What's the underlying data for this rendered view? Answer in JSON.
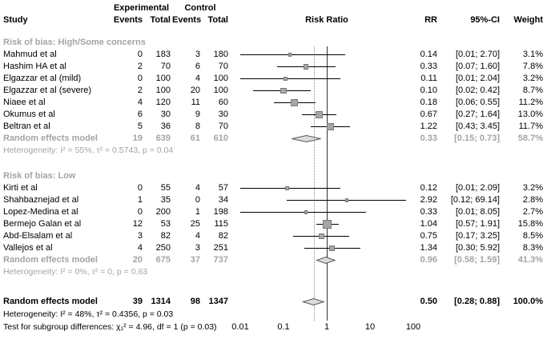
{
  "header": {
    "col_study": "Study",
    "group_experimental": "Experimental",
    "group_control": "Control",
    "col_events": "Events",
    "col_total": "Total",
    "col_risk_ratio": "Risk Ratio",
    "col_rr": "RR",
    "col_ci": "95%-CI",
    "col_weight": "Weight"
  },
  "footer": {
    "overall_heterogeneity": "Heterogeneity: I² = 48%, τ² = 0.4356, p = 0.03",
    "subgroup_test": "Test for subgroup differences: χ₁² = 4.96, df = 1 (p = 0.03)"
  },
  "chart_data": {
    "type": "forest",
    "effect_measure": "Risk Ratio",
    "x_scale": "log",
    "x_range": [
      0.01,
      100
    ],
    "x_ticks": [
      "0.01",
      "0.1",
      "1",
      "10",
      "100"
    ],
    "reference_line": 1.0,
    "overall_effect_line": 0.5,
    "groups": [
      {
        "label": "Risk of bias: High/Some concerns",
        "heterogeneity": "Heterogeneity: I² = 55%, τ² = 0.5743, p = 0.04",
        "studies": [
          {
            "study": "Mahmud et al",
            "exp_events": "0",
            "exp_total": "183",
            "ctrl_events": "3",
            "ctrl_total": "180",
            "rr": 0.14,
            "ci_low": 0.01,
            "ci_high": 2.7,
            "rr_text": "0.14",
            "ci_text": "[0.01; 2.70]",
            "weight": 3.1,
            "weight_text": "3.1%"
          },
          {
            "study": "Hashim HA et al",
            "exp_events": "2",
            "exp_total": "70",
            "ctrl_events": "6",
            "ctrl_total": "70",
            "rr": 0.33,
            "ci_low": 0.07,
            "ci_high": 1.6,
            "rr_text": "0.33",
            "ci_text": "[0.07; 1.60]",
            "weight": 7.8,
            "weight_text": "7.8%"
          },
          {
            "study": "Elgazzar et al (mild)",
            "exp_events": "0",
            "exp_total": "100",
            "ctrl_events": "4",
            "ctrl_total": "100",
            "rr": 0.11,
            "ci_low": 0.01,
            "ci_high": 2.04,
            "rr_text": "0.11",
            "ci_text": "[0.01; 2.04]",
            "weight": 3.2,
            "weight_text": "3.2%"
          },
          {
            "study": "Elgazzar et al (severe)",
            "exp_events": "2",
            "exp_total": "100",
            "ctrl_events": "20",
            "ctrl_total": "100",
            "rr": 0.1,
            "ci_low": 0.02,
            "ci_high": 0.42,
            "rr_text": "0.10",
            "ci_text": "[0.02; 0.42]",
            "weight": 8.7,
            "weight_text": "8.7%"
          },
          {
            "study": "Niaee et al",
            "exp_events": "4",
            "exp_total": "120",
            "ctrl_events": "11",
            "ctrl_total": "60",
            "rr": 0.18,
            "ci_low": 0.06,
            "ci_high": 0.55,
            "rr_text": "0.18",
            "ci_text": "[0.06; 0.55]",
            "weight": 11.2,
            "weight_text": "11.2%"
          },
          {
            "study": "Okumus et al",
            "exp_events": "6",
            "exp_total": "30",
            "ctrl_events": "9",
            "ctrl_total": "30",
            "rr": 0.67,
            "ci_low": 0.27,
            "ci_high": 1.64,
            "rr_text": "0.67",
            "ci_text": "[0.27; 1.64]",
            "weight": 13.0,
            "weight_text": "13.0%"
          },
          {
            "study": "Beltran et al",
            "exp_events": "5",
            "exp_total": "36",
            "ctrl_events": "8",
            "ctrl_total": "70",
            "rr": 1.22,
            "ci_low": 0.43,
            "ci_high": 3.45,
            "rr_text": "1.22",
            "ci_text": "[0.43; 3.45]",
            "weight": 11.7,
            "weight_text": "11.7%"
          }
        ],
        "pooled": {
          "study": "Random effects model",
          "exp_events": "19",
          "exp_total": "639",
          "ctrl_events": "61",
          "ctrl_total": "610",
          "rr": 0.33,
          "ci_low": 0.15,
          "ci_high": 0.73,
          "rr_text": "0.33",
          "ci_text": "[0.15; 0.73]",
          "weight_text": "58.7%"
        }
      },
      {
        "label": "Risk of bias: Low",
        "heterogeneity": "Heterogeneity: I² = 0%, τ² = 0, p = 0.63",
        "studies": [
          {
            "study": "Kirti et al",
            "exp_events": "0",
            "exp_total": "55",
            "ctrl_events": "4",
            "ctrl_total": "57",
            "rr": 0.12,
            "ci_low": 0.01,
            "ci_high": 2.09,
            "rr_text": "0.12",
            "ci_text": "[0.01; 2.09]",
            "weight": 3.2,
            "weight_text": "3.2%"
          },
          {
            "study": "Shahbaznejad et al",
            "exp_events": "1",
            "exp_total": "35",
            "ctrl_events": "0",
            "ctrl_total": "34",
            "rr": 2.92,
            "ci_low": 0.12,
            "ci_high": 69.14,
            "rr_text": "2.92",
            "ci_text": "[0.12; 69.14]",
            "weight": 2.8,
            "weight_text": "2.8%"
          },
          {
            "study": "Lopez-Medina et al",
            "exp_events": "0",
            "exp_total": "200",
            "ctrl_events": "1",
            "ctrl_total": "198",
            "rr": 0.33,
            "ci_low": 0.01,
            "ci_high": 8.05,
            "rr_text": "0.33",
            "ci_text": "[0.01; 8.05]",
            "weight": 2.7,
            "weight_text": "2.7%"
          },
          {
            "study": "Bermejo Galan et al",
            "exp_events": "12",
            "exp_total": "53",
            "ctrl_events": "25",
            "ctrl_total": "115",
            "rr": 1.04,
            "ci_low": 0.57,
            "ci_high": 1.91,
            "rr_text": "1.04",
            "ci_text": "[0.57; 1.91]",
            "weight": 15.8,
            "weight_text": "15.8%"
          },
          {
            "study": "Abd-Elsalam et al",
            "exp_events": "3",
            "exp_total": "82",
            "ctrl_events": "4",
            "ctrl_total": "82",
            "rr": 0.75,
            "ci_low": 0.17,
            "ci_high": 3.25,
            "rr_text": "0.75",
            "ci_text": "[0.17; 3.25]",
            "weight": 8.5,
            "weight_text": "8.5%"
          },
          {
            "study": "Vallejos et al",
            "exp_events": "4",
            "exp_total": "250",
            "ctrl_events": "3",
            "ctrl_total": "251",
            "rr": 1.34,
            "ci_low": 0.3,
            "ci_high": 5.92,
            "rr_text": "1.34",
            "ci_text": "[0.30; 5.92]",
            "weight": 8.3,
            "weight_text": "8.3%"
          }
        ],
        "pooled": {
          "study": "Random effects model",
          "exp_events": "20",
          "exp_total": "675",
          "ctrl_events": "37",
          "ctrl_total": "737",
          "rr": 0.96,
          "ci_low": 0.58,
          "ci_high": 1.59,
          "rr_text": "0.96",
          "ci_text": "[0.58; 1.59]",
          "weight_text": "41.3%"
        }
      }
    ],
    "overall": {
      "study": "Random effects model",
      "exp_events": "39",
      "exp_total": "1314",
      "ctrl_events": "98",
      "ctrl_total": "1347",
      "rr": 0.5,
      "ci_low": 0.28,
      "ci_high": 0.88,
      "rr_text": "0.50",
      "ci_text": "[0.28; 0.88]",
      "weight_text": "100.0%"
    }
  }
}
